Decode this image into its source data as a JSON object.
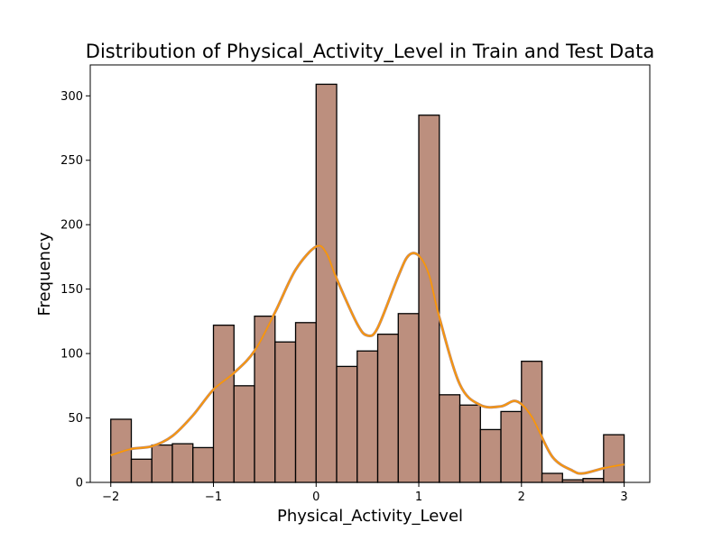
{
  "chart_data": {
    "type": "bar",
    "title": "Distribution of Physical_Activity_Level in Train and Test Data",
    "xlabel": "Physical_Activity_Level",
    "ylabel": "Frequency",
    "xlim": [
      -2.2,
      3.25
    ],
    "ylim": [
      0,
      324
    ],
    "x_ticks": [
      -2,
      -1,
      0,
      1,
      2,
      3
    ],
    "x_tick_labels": [
      "−2",
      "−1",
      "0",
      "1",
      "2",
      "3"
    ],
    "y_ticks": [
      0,
      50,
      100,
      150,
      200,
      250,
      300
    ],
    "grid": false,
    "bin_width": 0.2,
    "bins": [
      {
        "x0": -2.0,
        "x1": -1.8,
        "count": 49
      },
      {
        "x0": -1.8,
        "x1": -1.6,
        "count": 18
      },
      {
        "x0": -1.6,
        "x1": -1.4,
        "count": 29
      },
      {
        "x0": -1.4,
        "x1": -1.2,
        "count": 30
      },
      {
        "x0": -1.2,
        "x1": -1.0,
        "count": 27
      },
      {
        "x0": -1.0,
        "x1": -0.8,
        "count": 122
      },
      {
        "x0": -0.8,
        "x1": -0.6,
        "count": 75
      },
      {
        "x0": -0.6,
        "x1": -0.4,
        "count": 129
      },
      {
        "x0": -0.4,
        "x1": -0.2,
        "count": 109
      },
      {
        "x0": -0.2,
        "x1": 0.0,
        "count": 124
      },
      {
        "x0": 0.0,
        "x1": 0.2,
        "count": 309
      },
      {
        "x0": 0.2,
        "x1": 0.4,
        "count": 90
      },
      {
        "x0": 0.4,
        "x1": 0.6,
        "count": 102
      },
      {
        "x0": 0.6,
        "x1": 0.8,
        "count": 115
      },
      {
        "x0": 0.8,
        "x1": 1.0,
        "count": 131
      },
      {
        "x0": 1.0,
        "x1": 1.2,
        "count": 285
      },
      {
        "x0": 1.2,
        "x1": 1.4,
        "count": 68
      },
      {
        "x0": 1.4,
        "x1": 1.6,
        "count": 60
      },
      {
        "x0": 1.6,
        "x1": 1.8,
        "count": 41
      },
      {
        "x0": 1.8,
        "x1": 2.0,
        "count": 55
      },
      {
        "x0": 2.0,
        "x1": 2.2,
        "count": 94
      },
      {
        "x0": 2.2,
        "x1": 2.4,
        "count": 7
      },
      {
        "x0": 2.4,
        "x1": 2.6,
        "count": 2
      },
      {
        "x0": 2.6,
        "x1": 2.8,
        "count": 3
      },
      {
        "x0": 2.8,
        "x1": 3.0,
        "count": 37
      }
    ],
    "kde_curve": {
      "x": [
        -2.0,
        -1.8,
        -1.6,
        -1.4,
        -1.2,
        -1.0,
        -0.8,
        -0.6,
        -0.4,
        -0.2,
        0.0,
        0.1,
        0.2,
        0.4,
        0.5,
        0.6,
        0.8,
        0.9,
        1.0,
        1.1,
        1.2,
        1.4,
        1.6,
        1.8,
        1.95,
        2.1,
        2.3,
        2.5,
        2.6,
        2.8,
        3.0
      ],
      "y": [
        21,
        26,
        28,
        36,
        52,
        72,
        85,
        102,
        132,
        165,
        183,
        178,
        158,
        123,
        114,
        120,
        160,
        176,
        176,
        161,
        128,
        76,
        60,
        59,
        63,
        51,
        20,
        9,
        7,
        11,
        14
      ]
    },
    "colors": {
      "bar_fill": "#bc8f7e",
      "bar_edge": "#000000",
      "kde_line": "#ff9900",
      "kde_shadow": "#c08a6a"
    }
  }
}
